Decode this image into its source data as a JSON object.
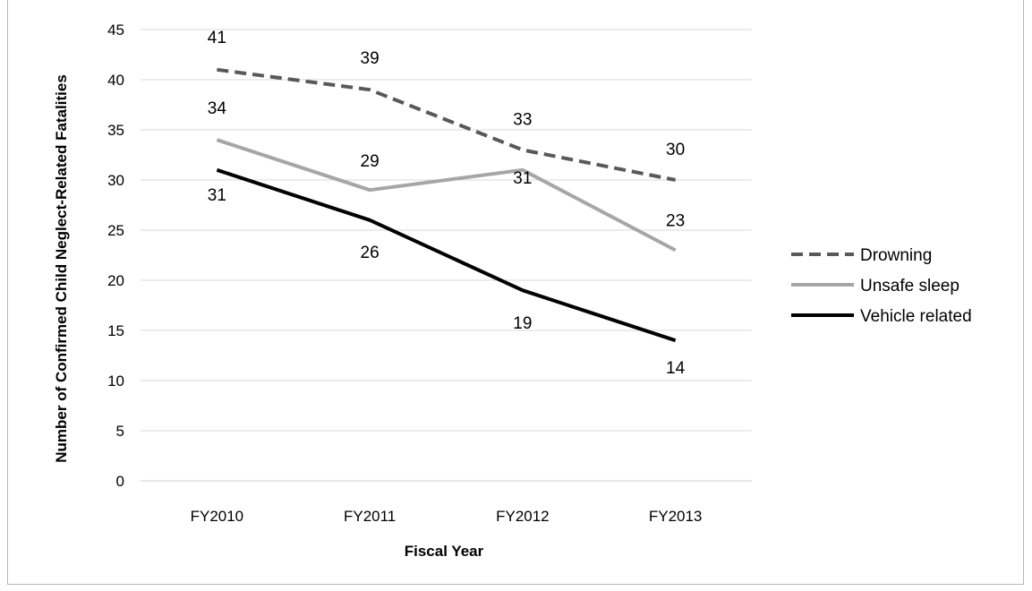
{
  "chart_data": {
    "type": "line",
    "title": "",
    "xlabel": "Fiscal Year",
    "ylabel": "Number of Confirmed Child  Neglect-Related Fatalities",
    "categories": [
      "FY2010",
      "FY2011",
      "FY2012",
      "FY2013"
    ],
    "ylim": [
      0,
      45
    ],
    "yticks": [
      0,
      5,
      10,
      15,
      20,
      25,
      30,
      35,
      40,
      45
    ],
    "grid": true,
    "legend_position": "right",
    "series": [
      {
        "name": "Drowning",
        "values": [
          41,
          39,
          33,
          30
        ],
        "color": "#595959",
        "dash": "dashed",
        "labels": [
          "41",
          "39",
          "33",
          "30"
        ]
      },
      {
        "name": "Unsafe sleep",
        "values": [
          34,
          29,
          31,
          23
        ],
        "color": "#a6a6a6",
        "dash": "solid",
        "labels": [
          "34",
          "29",
          "31",
          "23"
        ]
      },
      {
        "name": "Vehicle related",
        "values": [
          31,
          26,
          19,
          14
        ],
        "color": "#000000",
        "dash": "solid",
        "labels": [
          "31",
          "26",
          "19",
          "14"
        ]
      }
    ]
  }
}
